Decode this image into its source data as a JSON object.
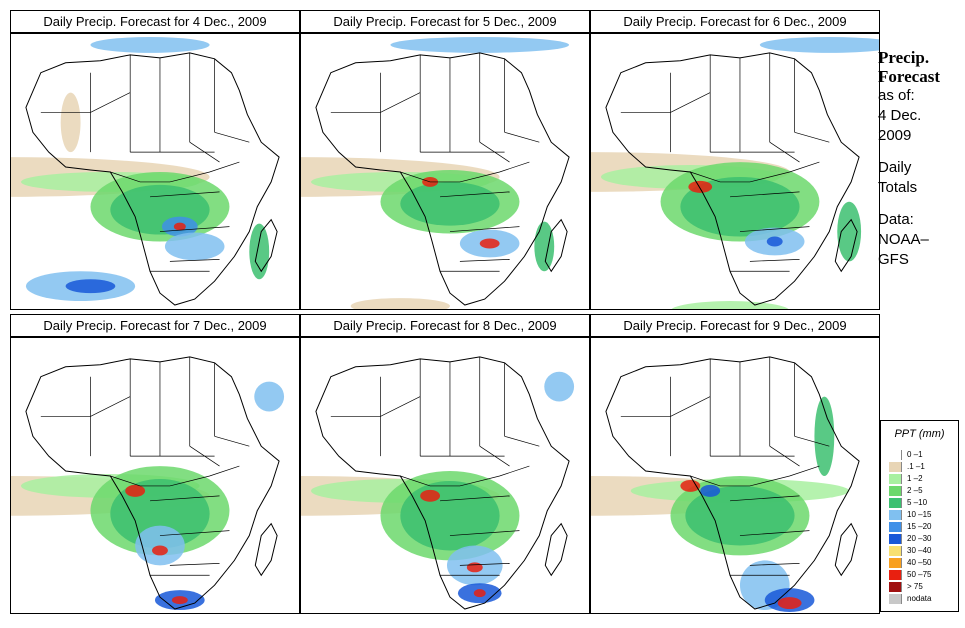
{
  "panels": [
    {
      "title": "Daily Precip. Forecast for  4 Dec., 2009"
    },
    {
      "title": "Daily Precip. Forecast for  5 Dec., 2009"
    },
    {
      "title": "Daily Precip. Forecast for  6 Dec., 2009"
    },
    {
      "title": "Daily Precip. Forecast for  7 Dec., 2009"
    },
    {
      "title": "Daily Precip. Forecast for  8 Dec., 2009"
    },
    {
      "title": "Daily Precip. Forecast for  9 Dec., 2009"
    }
  ],
  "sidebar": {
    "title_line1": "Precip.",
    "title_line2": "Forecast",
    "asof_line1": "as of:",
    "asof_line2": "4 Dec.",
    "asof_line3": "2009",
    "daily_line1": "Daily",
    "daily_line2": "Totals",
    "data_line1": "Data:",
    "data_line2": "NOAA–",
    "data_line3": "GFS"
  },
  "legend": {
    "title": "PPT (mm)",
    "items": [
      {
        "label": "0 –1",
        "color": "#ffffff"
      },
      {
        "label": ".1 –1",
        "color": "#e8d5b5"
      },
      {
        "label": "1 –2",
        "color": "#a8f0a0"
      },
      {
        "label": "2 –5",
        "color": "#6cd86c"
      },
      {
        "label": "5 –10",
        "color": "#3cc070"
      },
      {
        "label": "10 –15",
        "color": "#80c0f0"
      },
      {
        "label": "15 –20",
        "color": "#4090e8"
      },
      {
        "label": "20 –30",
        "color": "#1858d8"
      },
      {
        "label": "30 –40",
        "color": "#f8e070"
      },
      {
        "label": "40 –50",
        "color": "#f8a020"
      },
      {
        "label": "50 –75",
        "color": "#e82010"
      },
      {
        "label": "> 75",
        "color": "#a01010"
      },
      {
        "label": "nodata",
        "color": "#c8c8c8"
      }
    ]
  }
}
